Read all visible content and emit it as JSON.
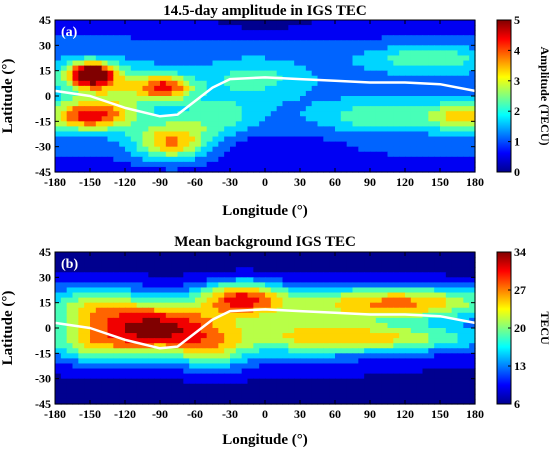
{
  "colormap": [
    "#00008f",
    "#0000ff",
    "#0080ff",
    "#00ffff",
    "#80ff80",
    "#ffff00",
    "#ff8000",
    "#ff0000",
    "#800000"
  ],
  "chart_data": [
    {
      "type": "heatmap",
      "panel_label": "(a)",
      "title": "14.5-day amplitude in IGS TEC",
      "xlabel": "Longitude (°)",
      "ylabel": "Latitude (°)",
      "xlim": [
        -180,
        180
      ],
      "ylim": [
        -45,
        45
      ],
      "xticks": [
        "-180",
        "-150",
        "-120",
        "-90",
        "-60",
        "-30",
        "0",
        "30",
        "60",
        "90",
        "120",
        "150",
        "180"
      ],
      "yticks": [
        "45",
        "30",
        "15",
        "0",
        "-15",
        "-30",
        "-45"
      ],
      "colorbar": {
        "label": "Amplitude (TECU)",
        "min": 0,
        "max": 5,
        "ticks": [
          "5",
          "4",
          "3",
          "2",
          "1",
          "0"
        ]
      },
      "background": 1.2,
      "features": [
        {
          "lon": -150,
          "lat": 13,
          "amp": 4.3,
          "sx": 14,
          "sy": 5
        },
        {
          "lon": -130,
          "lat": 5,
          "amp": 1.6,
          "sx": 30,
          "sy": 9
        },
        {
          "lon": -85,
          "lat": 5,
          "amp": 2.8,
          "sx": 16,
          "sy": 5
        },
        {
          "lon": -150,
          "lat": -12,
          "amp": 3.2,
          "sx": 25,
          "sy": 6
        },
        {
          "lon": -80,
          "lat": -27,
          "amp": 2.7,
          "sx": 22,
          "sy": 8
        },
        {
          "lon": -40,
          "lat": -12,
          "amp": 1.1,
          "sx": 22,
          "sy": 8
        },
        {
          "lon": 100,
          "lat": -12,
          "amp": 1.3,
          "sx": 35,
          "sy": 6
        },
        {
          "lon": 170,
          "lat": -12,
          "amp": 2.0,
          "sx": 20,
          "sy": 6
        },
        {
          "lon": 140,
          "lat": 22,
          "amp": 1.4,
          "sx": 35,
          "sy": 5
        },
        {
          "lon": -10,
          "lat": 10,
          "amp": 1.0,
          "sx": 30,
          "sy": 8
        },
        {
          "lon": 10,
          "lat": -30,
          "amp": -0.6,
          "sx": 40,
          "sy": 6
        },
        {
          "lon": 0,
          "lat": 40,
          "amp": -0.4,
          "sx": 60,
          "sy": 5
        }
      ],
      "equator_line": [
        [
          -180,
          3
        ],
        [
          -150,
          0
        ],
        [
          -120,
          -7
        ],
        [
          -90,
          -12
        ],
        [
          -75,
          -11
        ],
        [
          -60,
          -3
        ],
        [
          -45,
          5
        ],
        [
          -30,
          10
        ],
        [
          0,
          11
        ],
        [
          30,
          10
        ],
        [
          60,
          9
        ],
        [
          90,
          8
        ],
        [
          120,
          8
        ],
        [
          150,
          7
        ],
        [
          180,
          3
        ]
      ]
    },
    {
      "type": "heatmap",
      "panel_label": "(b)",
      "title": "Mean background IGS TEC",
      "xlabel": "Longitude (°)",
      "ylabel": "Latitude (°)",
      "xlim": [
        -180,
        180
      ],
      "ylim": [
        -45,
        45
      ],
      "xticks": [
        "-180",
        "-150",
        "-120",
        "-90",
        "-60",
        "-30",
        "0",
        "30",
        "60",
        "90",
        "120",
        "150",
        "180"
      ],
      "yticks": [
        "45",
        "30",
        "15",
        "0",
        "-15",
        "-30",
        "-45"
      ],
      "colorbar": {
        "label": "TECU",
        "min": 6,
        "max": 34,
        "ticks": [
          "34",
          "27",
          "20",
          "13",
          "6"
        ]
      },
      "background": 8,
      "features": [
        {
          "lon": -90,
          "lat": 0,
          "amp": 23,
          "sx": 38,
          "sy": 11
        },
        {
          "lon": -150,
          "lat": 12,
          "amp": 13,
          "sx": 30,
          "sy": 10
        },
        {
          "lon": -150,
          "lat": -10,
          "amp": 11,
          "sx": 30,
          "sy": 8
        },
        {
          "lon": -20,
          "lat": 18,
          "amp": 18,
          "sx": 25,
          "sy": 7
        },
        {
          "lon": 120,
          "lat": 15,
          "amp": 18,
          "sx": 60,
          "sy": 7
        },
        {
          "lon": 100,
          "lat": -6,
          "amp": 13,
          "sx": 70,
          "sy": 6
        },
        {
          "lon": 20,
          "lat": 0,
          "amp": 9,
          "sx": 60,
          "sy": 14
        },
        {
          "lon": -45,
          "lat": -15,
          "amp": 8,
          "sx": 20,
          "sy": 8
        }
      ],
      "equator_line": [
        [
          -180,
          3
        ],
        [
          -150,
          0
        ],
        [
          -120,
          -7
        ],
        [
          -90,
          -12
        ],
        [
          -75,
          -11
        ],
        [
          -60,
          -3
        ],
        [
          -45,
          5
        ],
        [
          -30,
          10
        ],
        [
          0,
          11
        ],
        [
          30,
          10
        ],
        [
          60,
          9
        ],
        [
          90,
          8
        ],
        [
          120,
          8
        ],
        [
          150,
          7
        ],
        [
          180,
          3
        ]
      ]
    }
  ]
}
